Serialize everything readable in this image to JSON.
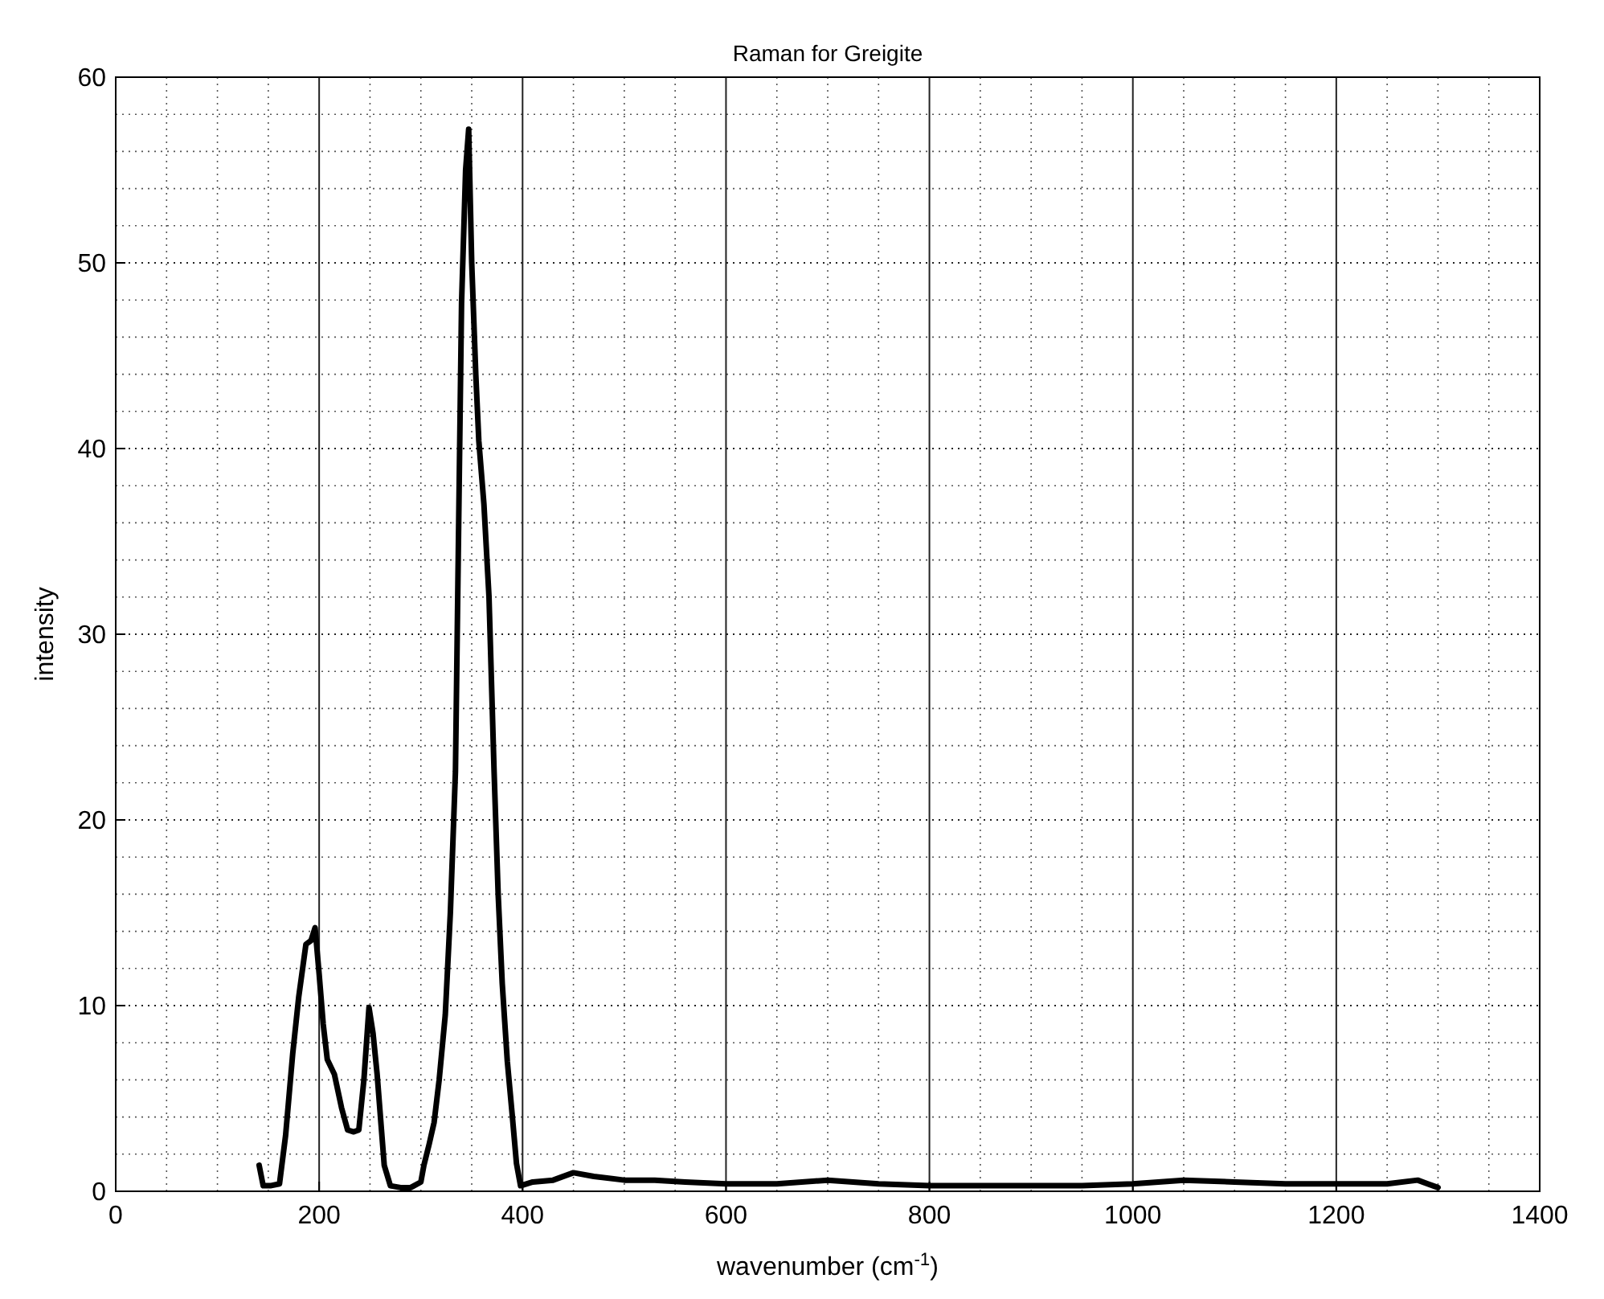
{
  "chart_data": {
    "type": "line",
    "title": "Raman for Greigite",
    "xlabel": "wavenumber (cm$^{-1}$)",
    "ylabel": "intensity",
    "xlim": [
      0,
      1400
    ],
    "xticks": [
      0,
      200,
      400,
      600,
      800,
      1000,
      1200,
      1400
    ],
    "ylim": [
      0,
      60
    ],
    "yticks": [
      0,
      10,
      20,
      30,
      40,
      50,
      60
    ],
    "grid": true,
    "marker": "none",
    "line_style": "solid",
    "series": [
      {
        "color": "#000000",
        "x": [
          141,
          145,
          152,
          161,
          167,
          174,
          180,
          187,
          192,
          196,
          200,
          204,
          208,
          215,
          222,
          228,
          234,
          239,
          244,
          249,
          253,
          257,
          261,
          264,
          270,
          280,
          290,
          300,
          303,
          308,
          313,
          318,
          324,
          329,
          334,
          336,
          340,
          344,
          347,
          350,
          354,
          357,
          362,
          367,
          372,
          376,
          380,
          385,
          390,
          394,
          398,
          410,
          430,
          450,
          470,
          500,
          530,
          560,
          600,
          650,
          700,
          750,
          800,
          850,
          900,
          950,
          1000,
          1050,
          1100,
          1150,
          1200,
          1250,
          1280,
          1300
        ],
        "values": [
          1.4,
          0.3,
          0.3,
          0.4,
          3,
          7.4,
          10.5,
          13.3,
          13.5,
          14.2,
          11.7,
          9,
          7.1,
          6.3,
          4.5,
          3.3,
          3.2,
          3.3,
          6,
          9.9,
          8.5,
          6.3,
          3.5,
          1.4,
          0.3,
          0.2,
          0.2,
          0.5,
          1.4,
          2.5,
          3.7,
          6,
          9.5,
          15,
          22.6,
          31,
          47.8,
          55,
          57.2,
          50,
          44,
          40.4,
          37,
          32,
          22.6,
          16,
          11.2,
          7,
          4,
          1.5,
          0.3,
          0.5,
          0.6,
          1,
          0.8,
          0.6,
          0.6,
          0.5,
          0.4,
          0.4,
          0.6,
          0.4,
          0.3,
          0.3,
          0.3,
          0.3,
          0.4,
          0.6,
          0.5,
          0.4,
          0.4,
          0.4,
          0.6,
          0.2
        ]
      }
    ]
  }
}
